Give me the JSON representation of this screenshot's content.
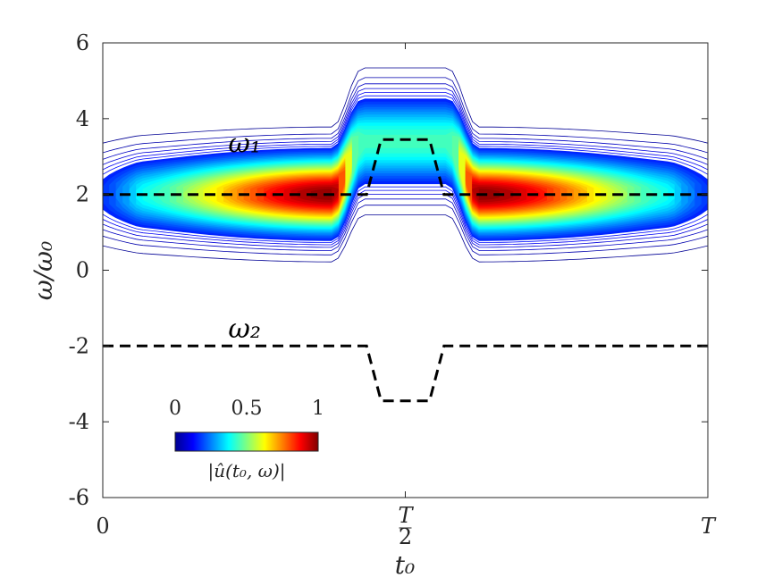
{
  "chart_data": {
    "type": "contour",
    "xlabel": "t₀",
    "ylabel": "ω/ω₀",
    "ylim": [
      -6,
      6
    ],
    "yticks": [
      "6",
      "4",
      "2",
      "0",
      "-2",
      "-4",
      "-6"
    ],
    "ytick_values": [
      6,
      4,
      2,
      0,
      -2,
      -4,
      -6
    ],
    "xticks": [
      "0",
      "T/2",
      "T"
    ],
    "xtick_values": [
      0,
      0.5,
      1
    ],
    "grid": false,
    "series": [
      {
        "name": "ω₁",
        "style": "dashed-black",
        "x": [
          0,
          0.436,
          0.46,
          0.5,
          0.54,
          0.564,
          1
        ],
        "y": [
          2,
          2,
          3.45,
          3.45,
          3.45,
          2,
          2
        ]
      },
      {
        "name": "ω₂",
        "style": "dashed-black",
        "x": [
          0,
          0.436,
          0.46,
          0.5,
          0.54,
          0.564,
          1
        ],
        "y": [
          -2,
          -2,
          -3.45,
          -3.45,
          -3.45,
          -2,
          -2
        ]
      }
    ],
    "ridge": {
      "x": [
        0,
        0.38,
        0.43,
        0.5,
        0.57,
        0.62,
        1
      ],
      "y": [
        2,
        2,
        3.4,
        3.4,
        3.4,
        2,
        2
      ],
      "halfwidth": [
        0.9,
        0.9,
        1.1,
        1.1,
        1.1,
        0.9,
        0.9
      ],
      "peak": [
        0.35,
        1,
        0.45,
        0.45,
        0.45,
        1,
        0.35
      ]
    },
    "colorbar": {
      "min": 0,
      "max": 1,
      "ticks": [
        "0",
        "0.5",
        "1"
      ],
      "tick_values": [
        0,
        0.5,
        1
      ],
      "label": "|û(t₀, ω)|",
      "colormap": "jet"
    },
    "annotations": [
      {
        "text": "ω₁",
        "at": [
          0.2,
          3.35
        ]
      },
      {
        "text": "ω₂",
        "at": [
          0.2,
          -1.55
        ]
      }
    ]
  }
}
